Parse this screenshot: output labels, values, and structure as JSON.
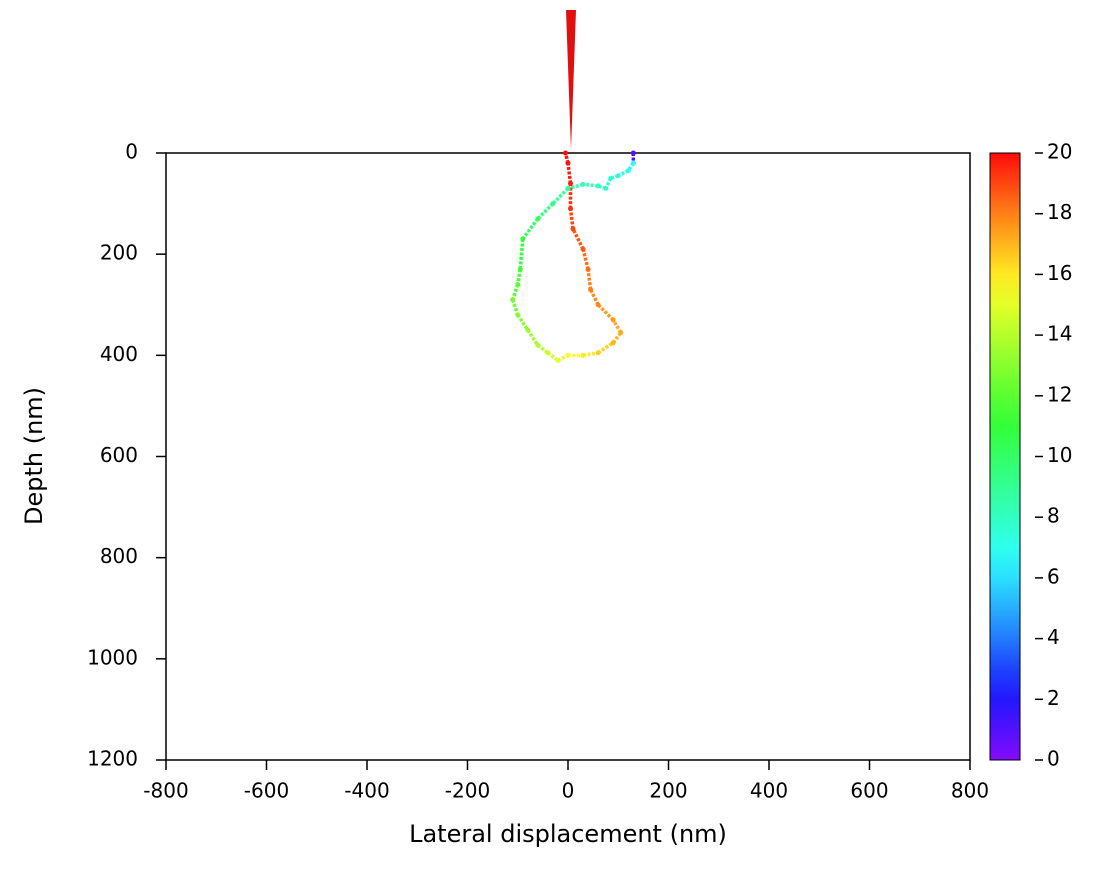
{
  "chart_data": {
    "type": "trajectory",
    "x_label": "Lateral displacement (nm)",
    "y_label": "Depth (nm)",
    "xlim": [
      -800,
      800
    ],
    "xticks": [
      -800,
      -600,
      -400,
      -200,
      0,
      200,
      400,
      600,
      800
    ],
    "ylim": [
      1200,
      0
    ],
    "yticks": [
      0,
      200,
      400,
      600,
      800,
      1000,
      1200
    ],
    "colormap": "rainbow",
    "clim": [
      0,
      20
    ],
    "cticks": [
      0,
      2,
      4,
      6,
      8,
      10,
      12,
      14,
      16,
      18,
      20
    ],
    "series": [
      {
        "x": [
          130,
          130,
          120,
          100,
          85,
          75,
          60,
          30,
          0,
          -30,
          -60,
          -90,
          -95,
          -100,
          -110,
          -100,
          -80,
          -60,
          -40,
          -20,
          0,
          30,
          60,
          90,
          105,
          90,
          60,
          45,
          40,
          30,
          10,
          5,
          5,
          0,
          -5
        ],
        "values": [
          0,
          20,
          35,
          45,
          50,
          70,
          65,
          62,
          70,
          100,
          130,
          170,
          230,
          260,
          290,
          320,
          350,
          380,
          395,
          410,
          400,
          400,
          395,
          375,
          355,
          330,
          300,
          270,
          230,
          190,
          150,
          110,
          60,
          20,
          0
        ],
        "c": [
          1,
          6.5,
          7,
          7.3,
          7.6,
          7.8,
          8,
          8.3,
          8.8,
          9.4,
          10,
          10.8,
          11.5,
          12,
          12.5,
          13,
          13.5,
          14,
          14.5,
          15,
          15.5,
          16,
          16.5,
          17,
          17.2,
          17.5,
          17.8,
          18,
          18.3,
          18.7,
          19,
          19.4,
          19.7,
          19.9,
          20
        ]
      }
    ]
  }
}
